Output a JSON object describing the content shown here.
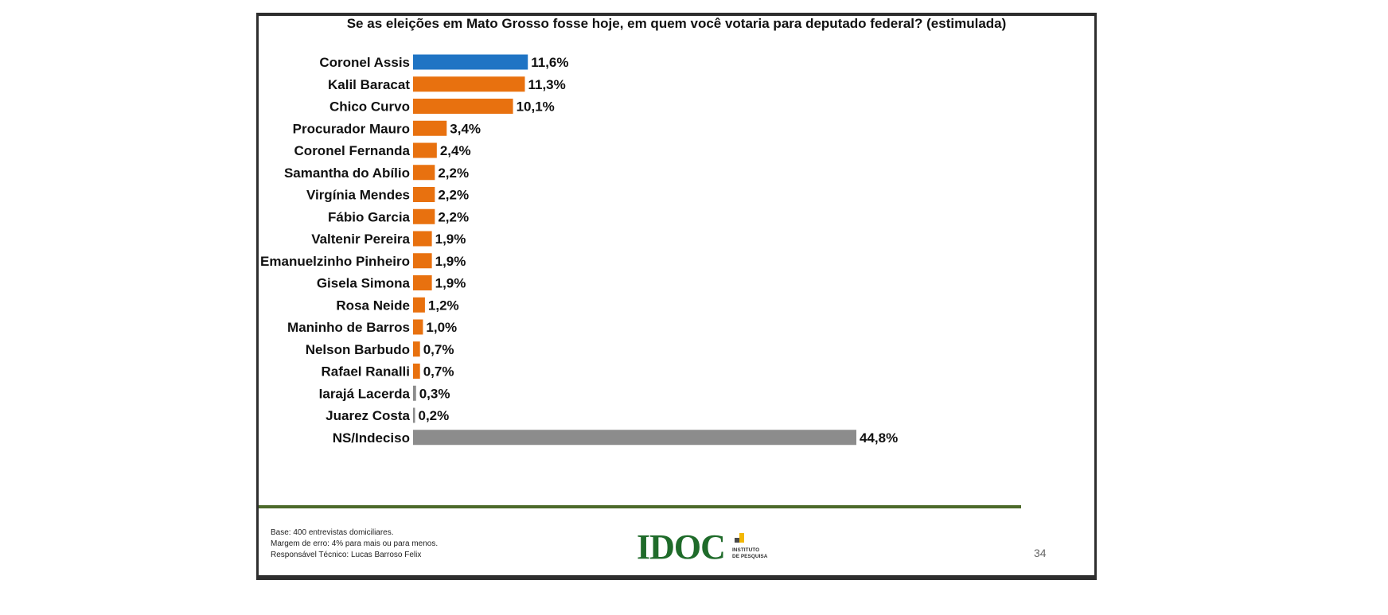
{
  "page": {
    "page_number": "34"
  },
  "chart_data": {
    "type": "bar",
    "orientation": "horizontal",
    "title": "Se as eleições em Mato Grosso fosse hoje, em quem você votaria para deputado federal? (estimulada)",
    "categories": [
      "Coronel Assis",
      "Kalil Baracat",
      "Chico Curvo",
      "Procurador Mauro",
      "Coronel Fernanda",
      "Samantha do Abílio",
      "Virgínia Mendes",
      "Fábio Garcia",
      "Valtenir Pereira",
      "Emanuelzinho Pinheiro",
      "Gisela Simona",
      "Rosa Neide",
      "Maninho de Barros",
      "Nelson Barbudo",
      "Rafael Ranalli",
      "Iarajá Lacerda",
      "Juarez Costa",
      "NS/Indeciso"
    ],
    "values": [
      11.6,
      11.3,
      10.1,
      3.4,
      2.4,
      2.2,
      2.2,
      2.2,
      1.9,
      1.9,
      1.9,
      1.2,
      1.0,
      0.7,
      0.7,
      0.3,
      0.2,
      44.8
    ],
    "value_labels": [
      "11,6%",
      "11,3%",
      "10,1%",
      "3,4%",
      "2,4%",
      "2,2%",
      "2,2%",
      "2,2%",
      "1,9%",
      "1,9%",
      "1,9%",
      "1,2%",
      "1,0%",
      "0,7%",
      "0,7%",
      "0,3%",
      "0,2%",
      "44,8%"
    ],
    "bar_colors": [
      "#1f74c4",
      "#e8710f",
      "#e8710f",
      "#e8710f",
      "#e8710f",
      "#e8710f",
      "#e8710f",
      "#e8710f",
      "#e8710f",
      "#e8710f",
      "#e8710f",
      "#e8710f",
      "#e8710f",
      "#e8710f",
      "#e8710f",
      "#8c8c8c",
      "#8c8c8c",
      "#8c8c8c"
    ],
    "xlim": [
      0,
      44.8
    ],
    "grid": false,
    "legend": "none"
  },
  "footer": {
    "notes": [
      "Base: 400 entrevistas domiciliares.",
      "Margem de erro: 4% para mais ou para menos.",
      "Responsável Técnico: Lucas Barroso Felix"
    ],
    "logo": {
      "text": "IDOC",
      "sub_line1": "INSTITUTO",
      "sub_line2": "DE PESQUISA",
      "mark_colors": [
        "#f2b705",
        "#4a4a4a"
      ]
    }
  },
  "colors": {
    "frame": "#2e2e2e",
    "rule": "#4c6a2a",
    "highlight_bar": "#1f74c4",
    "orange_bar": "#e8710f",
    "gray_bar": "#8c8c8c"
  }
}
